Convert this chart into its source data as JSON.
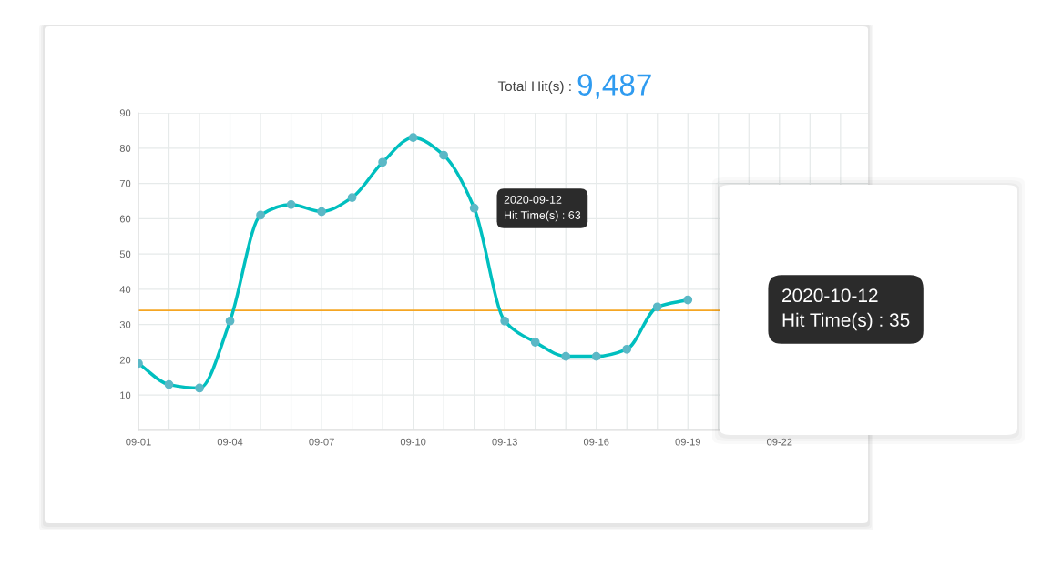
{
  "chart_data": {
    "type": "line",
    "title": "Total Hit(s) :",
    "subtitle": "9,487",
    "categories": [
      "09-01",
      null,
      null,
      "09-04",
      null,
      null,
      "09-07",
      null,
      null,
      "09-10",
      null,
      null,
      "09-13",
      null,
      null,
      "09-16",
      null,
      null,
      "09-19",
      null,
      null,
      "09-22",
      null,
      null
    ],
    "series": [
      {
        "color": "#00bfbf",
        "values": [
          19,
          13,
          12,
          31,
          61,
          64,
          62,
          66,
          76,
          83,
          78,
          63,
          31,
          25,
          21,
          21,
          23,
          35,
          37,
          null,
          null,
          null,
          null,
          null
        ]
      }
    ],
    "ylim": [
      0,
      90
    ],
    "yticks": [
      {
        "value": 0,
        "label": null
      },
      10,
      20,
      30,
      40,
      50,
      60,
      70,
      80,
      90
    ],
    "ref_lines": [
      {
        "axis": "y",
        "value": 34,
        "color": "#f5a623"
      }
    ],
    "annotations": [
      "2020-09-12\nHit Time(s) : 63",
      "2020-10-12\nHit Time(s) : 35"
    ],
    "grid": true,
    "marker": "circle",
    "line_style": "solid"
  }
}
